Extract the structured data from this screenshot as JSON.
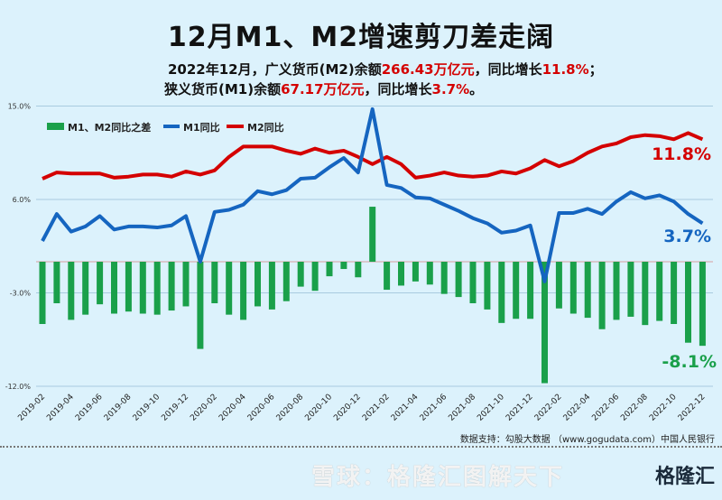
{
  "header": {
    "title": "12月M1、M2增速剪刀差走阔",
    "line1_a": "2022年12月，广义货币(M2)余额",
    "line1_v1": "266.43万亿元",
    "line1_b": "，同比增长",
    "line1_v2": "11.8%",
    "line1_c": "；",
    "line2_a": "狭义货币(M1)余额",
    "line2_v1": "67.17万亿元",
    "line2_b": "，同比增长",
    "line2_v2": "3.7%",
    "line2_c": "。"
  },
  "footer": {
    "source": "数据支持：勾股大数据 （www.gogudata.com）中国人民银行",
    "watermark": "雪球：格隆汇图解天下",
    "logo": "格隆汇"
  },
  "colors": {
    "m1": "#1565c0",
    "m2": "#d40000",
    "diff": "#1aa04a",
    "background": "#dcf2fc"
  },
  "chart_data": {
    "type": "bar+line",
    "legend": [
      "M1、M2同比之差",
      "M1同比",
      "M2同比"
    ],
    "legend_position": "top-left",
    "ylim": [
      -12,
      15
    ],
    "yticks": [
      "15.0%",
      "6.0%",
      "-3.0%",
      "-12.0%"
    ],
    "ytick_values": [
      15,
      6,
      -3,
      -12
    ],
    "grid": true,
    "x": [
      "2019-02",
      "2019-03",
      "2019-04",
      "2019-05",
      "2019-06",
      "2019-07",
      "2019-08",
      "2019-09",
      "2019-10",
      "2019-11",
      "2019-12",
      "2020-01",
      "2020-02",
      "2020-03",
      "2020-04",
      "2020-05",
      "2020-06",
      "2020-07",
      "2020-08",
      "2020-09",
      "2020-10",
      "2020-11",
      "2020-12",
      "2021-01",
      "2021-02",
      "2021-03",
      "2021-04",
      "2021-05",
      "2021-06",
      "2021-07",
      "2021-08",
      "2021-09",
      "2021-10",
      "2021-11",
      "2021-12",
      "2022-01",
      "2022-02",
      "2022-03",
      "2022-04",
      "2022-05",
      "2022-06",
      "2022-07",
      "2022-08",
      "2022-09",
      "2022-10",
      "2022-11",
      "2022-12"
    ],
    "xtick_labels": [
      "2019-02",
      "2019-04",
      "2019-06",
      "2019-08",
      "2019-10",
      "2019-12",
      "2020-02",
      "2020-04",
      "2020-06",
      "2020-08",
      "2020-10",
      "2020-12",
      "2021-02",
      "2021-04",
      "2021-06",
      "2021-08",
      "2021-10",
      "2021-12",
      "2022-02",
      "2022-04",
      "2022-06",
      "2022-08",
      "2022-10",
      "2022-12"
    ],
    "series": [
      {
        "name": "M1同比",
        "type": "line",
        "values": [
          2.0,
          4.6,
          2.9,
          3.4,
          4.4,
          3.1,
          3.4,
          3.4,
          3.3,
          3.5,
          4.4,
          0.0,
          4.8,
          5.0,
          5.5,
          6.8,
          6.5,
          6.9,
          8.0,
          8.1,
          9.1,
          10.0,
          8.6,
          14.7,
          7.4,
          7.1,
          6.2,
          6.1,
          5.5,
          4.9,
          4.2,
          3.7,
          2.8,
          3.0,
          3.5,
          -1.9,
          4.7,
          4.7,
          5.1,
          4.6,
          5.8,
          6.7,
          6.1,
          6.4,
          5.8,
          4.6,
          3.7
        ]
      },
      {
        "name": "M2同比",
        "type": "line",
        "values": [
          8.0,
          8.6,
          8.5,
          8.5,
          8.5,
          8.1,
          8.2,
          8.4,
          8.4,
          8.2,
          8.7,
          8.4,
          8.8,
          10.1,
          11.1,
          11.1,
          11.1,
          10.7,
          10.4,
          10.9,
          10.5,
          10.7,
          10.1,
          9.4,
          10.1,
          9.4,
          8.1,
          8.3,
          8.6,
          8.3,
          8.2,
          8.3,
          8.7,
          8.5,
          9.0,
          9.8,
          9.2,
          9.7,
          10.5,
          11.1,
          11.4,
          12.0,
          12.2,
          12.1,
          11.8,
          12.4,
          11.8
        ]
      },
      {
        "name": "M1、M2同比之差",
        "type": "bar",
        "values": [
          -6.0,
          -4.0,
          -5.6,
          -5.1,
          -4.1,
          -5.0,
          -4.8,
          -5.0,
          -5.1,
          -4.7,
          -4.3,
          -8.4,
          -4.0,
          -5.1,
          -5.6,
          -4.3,
          -4.6,
          -3.8,
          -2.4,
          -2.8,
          -1.4,
          -0.7,
          -1.5,
          5.3,
          -2.7,
          -2.3,
          -1.9,
          -2.2,
          -3.1,
          -3.4,
          -4.0,
          -4.6,
          -5.9,
          -5.5,
          -5.5,
          -11.7,
          -4.5,
          -5.0,
          -5.4,
          -6.5,
          -5.6,
          -5.3,
          -6.1,
          -5.7,
          -6.0,
          -7.8,
          -8.1
        ]
      }
    ],
    "end_labels": {
      "m2": "11.8%",
      "m1": "3.7%",
      "diff": "-8.1%"
    }
  }
}
